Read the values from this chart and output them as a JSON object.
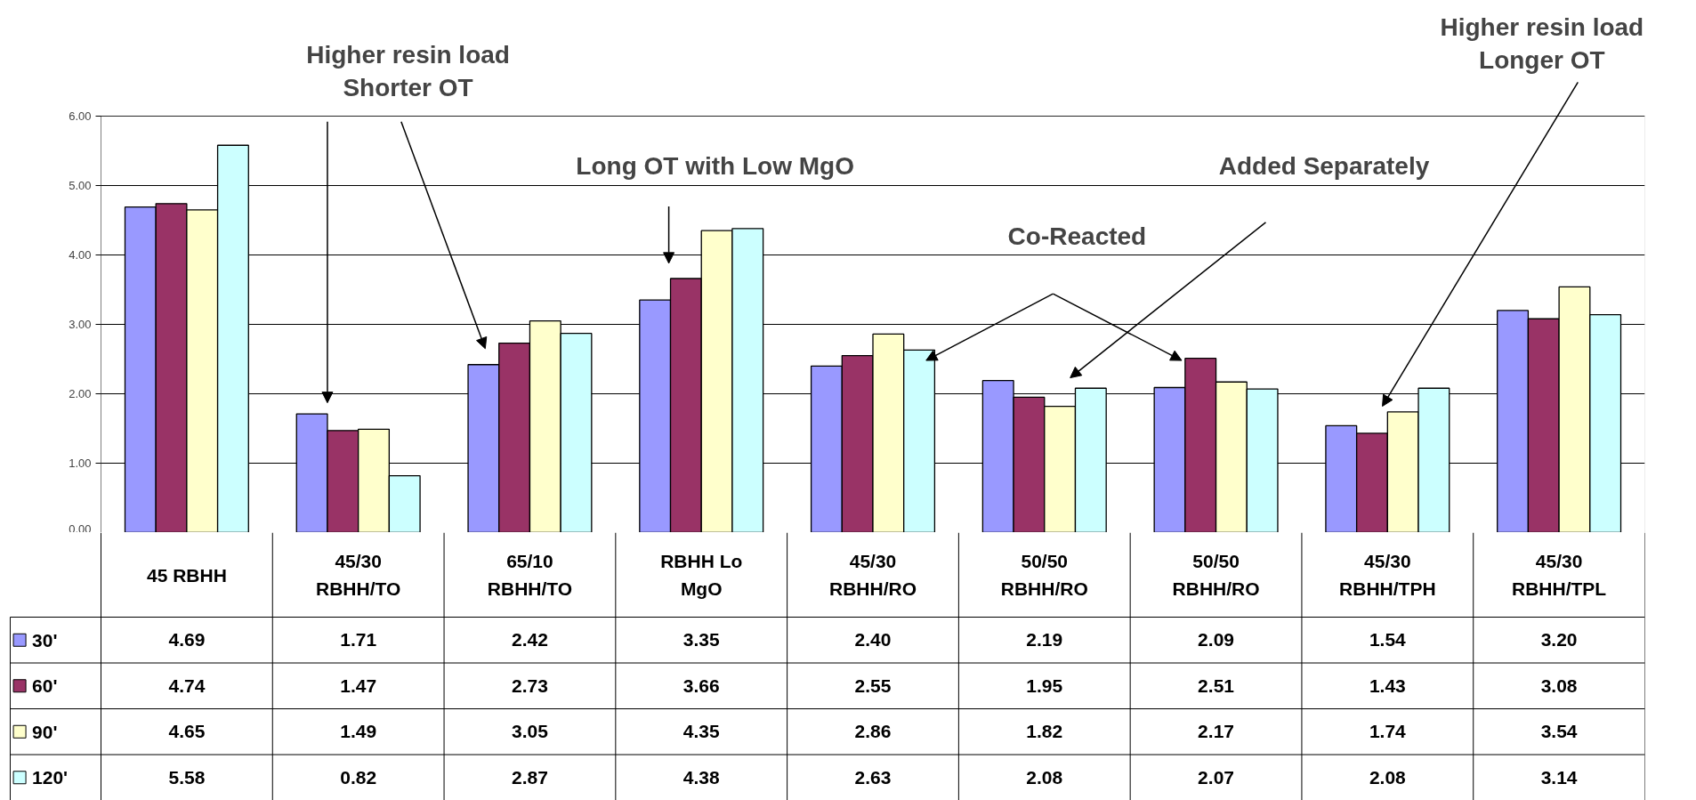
{
  "chart_data": {
    "type": "bar",
    "categories": [
      "45 RBHH",
      "45/30\nRBHH/TO",
      "65/10\nRBHH/TO",
      "RBHH Lo\nMgO",
      "45/30\nRBHH/RO",
      "50/50\nRBHH/RO",
      "50/50\nRBHH/RO",
      "45/30\nRBHH/TPH",
      "45/30\nRBHH/TPL"
    ],
    "series": [
      {
        "name": "30'",
        "color": "#9999ff",
        "values": [
          4.69,
          1.71,
          2.42,
          3.35,
          2.4,
          2.19,
          2.09,
          1.54,
          3.2
        ],
        "value_labels": [
          "4.69",
          "1.71",
          "2.42",
          "3.35",
          "2.40",
          "2.19",
          "2.09",
          "1.54",
          "3.20"
        ]
      },
      {
        "name": "60'",
        "color": "#993366",
        "values": [
          4.74,
          1.47,
          2.73,
          3.66,
          2.55,
          1.95,
          2.51,
          1.43,
          3.08
        ],
        "value_labels": [
          "4.74",
          "1.47",
          "2.73",
          "3.66",
          "2.55",
          "1.95",
          "2.51",
          "1.43",
          "3.08"
        ]
      },
      {
        "name": "90'",
        "color": "#ffffcc",
        "values": [
          4.65,
          1.49,
          3.05,
          4.35,
          2.86,
          1.82,
          2.17,
          1.74,
          3.54
        ],
        "value_labels": [
          "4.65",
          "1.49",
          "3.05",
          "4.35",
          "2.86",
          "1.82",
          "2.17",
          "1.74",
          "3.54"
        ]
      },
      {
        "name": "120'",
        "color": "#ccffff",
        "values": [
          5.58,
          0.82,
          2.87,
          4.38,
          2.63,
          2.08,
          2.07,
          2.08,
          3.14
        ],
        "value_labels": [
          "5.58",
          "0.82",
          "2.87",
          "4.38",
          "2.63",
          "2.08",
          "2.07",
          "2.08",
          "3.14"
        ]
      }
    ],
    "ylim": [
      0,
      6
    ],
    "yticks": [
      {
        "value": 0,
        "label": "0.00"
      },
      {
        "value": 1,
        "label": "1.00"
      },
      {
        "value": 2,
        "label": "2.00"
      },
      {
        "value": 3,
        "label": "3.00"
      },
      {
        "value": 4,
        "label": "4.00"
      },
      {
        "value": 5,
        "label": "5.00"
      },
      {
        "value": 6,
        "label": "6.00"
      }
    ],
    "grid": "y",
    "legend": "bottom left",
    "annotations": [
      "Higher resin load\nShorter OT",
      "Long OT with Low MgO",
      "Co-Reacted",
      "Added Separately",
      "Higher resin load\nLonger OT"
    ]
  }
}
